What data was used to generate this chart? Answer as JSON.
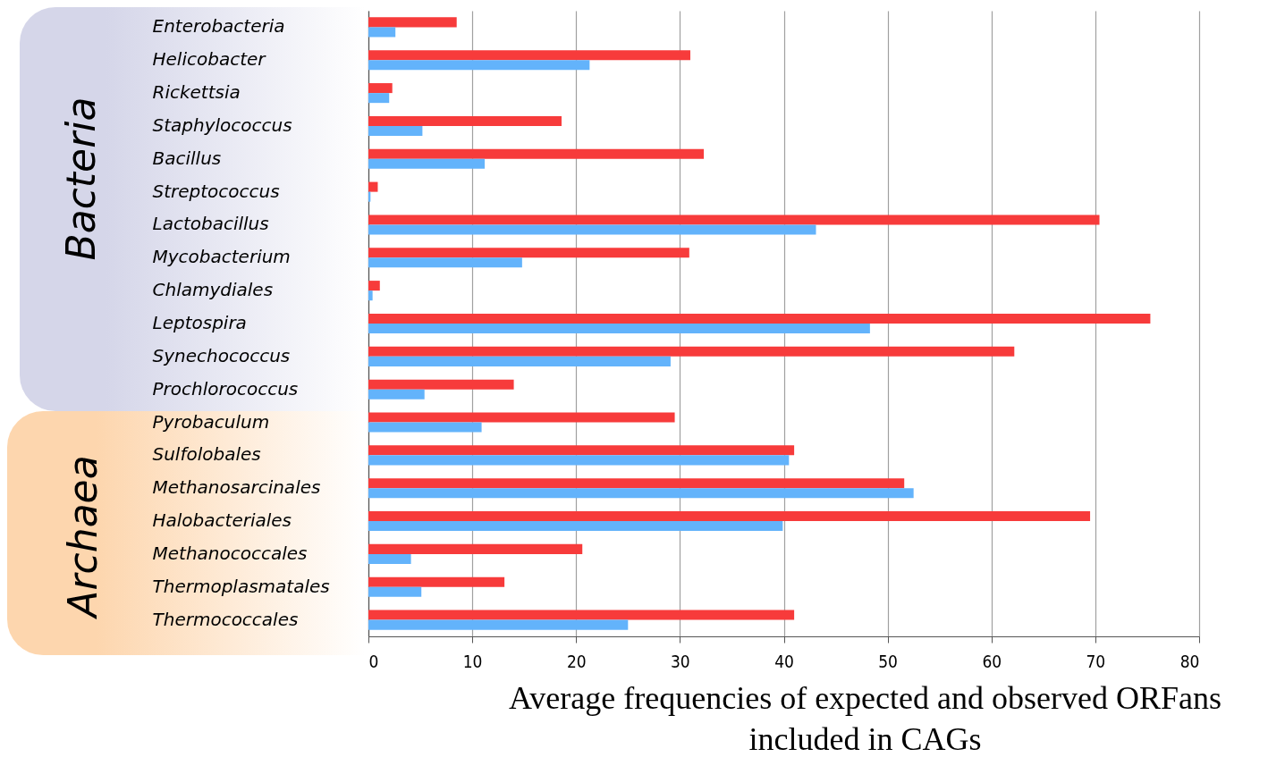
{
  "chart_data": {
    "type": "bar",
    "orientation": "horizontal",
    "xlabel": "Average frequencies of expected and observed ORFans included in CAGs",
    "categories": [
      "Enterobacteria",
      "Helicobacter",
      "Rickettsia",
      "Staphylococcus",
      "Bacillus",
      "Streptococcus",
      "Lactobacillus",
      "Mycobacterium",
      "Chlamydiales",
      "Leptospira",
      "Synechococcus",
      "Prochlorococcus",
      "Pyrobaculum",
      "Sulfolobales",
      "Methanosarcinales",
      "Halobacteriales",
      "Methanococcales",
      "Thermoplasmatales",
      "Thermococcales"
    ],
    "series": [
      {
        "color": "#f73b3b",
        "values": [
          8.5,
          31.0,
          2.3,
          18.6,
          32.3,
          0.9,
          70.4,
          30.9,
          1.1,
          75.3,
          62.2,
          14.0,
          29.5,
          41.0,
          51.6,
          69.5,
          20.6,
          13.1,
          41.0
        ]
      },
      {
        "color": "#63b3fb",
        "values": [
          2.6,
          21.3,
          2.0,
          5.2,
          11.2,
          0.2,
          43.1,
          14.8,
          0.4,
          48.3,
          29.1,
          5.4,
          10.9,
          40.5,
          52.5,
          39.9,
          4.1,
          5.1,
          25.0
        ]
      }
    ],
    "xlim": [
      0,
      80
    ],
    "xticks": [
      0,
      10,
      20,
      30,
      40,
      50,
      60,
      70,
      80
    ],
    "grid": "x",
    "annotations": [
      "Bacteria",
      "Archaea"
    ]
  }
}
